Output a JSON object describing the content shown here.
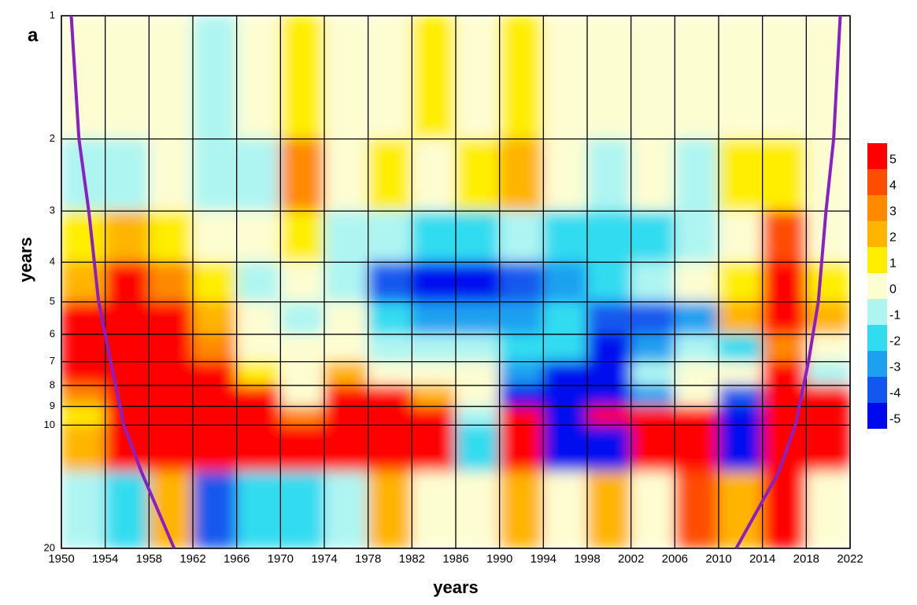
{
  "chart_data": {
    "type": "heatmap",
    "panel_label": "a",
    "x_label": "years",
    "y_label": "years",
    "log_y": true,
    "grid": true,
    "xlim": [
      1950,
      2022
    ],
    "ylim": [
      1,
      20
    ],
    "xticks": [
      1950,
      1954,
      1958,
      1962,
      1966,
      1970,
      1974,
      1978,
      1982,
      1986,
      1990,
      1994,
      1998,
      2002,
      2006,
      2010,
      2014,
      2018,
      2022
    ],
    "yticks": [
      1,
      2,
      3,
      4,
      5,
      6,
      7,
      8,
      9,
      10,
      20
    ],
    "x_bins": [
      1950,
      1954,
      1958,
      1962,
      1966,
      1970,
      1974,
      1978,
      1982,
      1986,
      1990,
      1994,
      1998,
      2002,
      2006,
      2010,
      2014,
      2018,
      2022
    ],
    "y_bins": [
      1,
      2,
      3,
      4,
      5,
      6,
      7,
      8,
      9,
      10,
      13,
      20
    ],
    "z": [
      [
        0,
        0,
        0,
        -1,
        0,
        1,
        0,
        0,
        1,
        0,
        1,
        0,
        0,
        0,
        0,
        0,
        0,
        0
      ],
      [
        -1,
        -1,
        0,
        -1,
        -1,
        3,
        0,
        1,
        0,
        1,
        2,
        0,
        -1,
        0,
        -1,
        1,
        1,
        0
      ],
      [
        1,
        2,
        1,
        0,
        0,
        1,
        -1,
        -1,
        -2,
        -2,
        -1,
        -2,
        -2,
        -2,
        -1,
        0,
        4,
        0
      ],
      [
        2,
        5,
        3,
        1,
        -1,
        0,
        -1,
        -4,
        -5,
        -5,
        -4,
        -3,
        -2,
        -1,
        0,
        1,
        5,
        1
      ],
      [
        5,
        5,
        5,
        2,
        0,
        -1,
        0,
        -2,
        -3,
        -3,
        -3,
        -2,
        -4,
        -4,
        -3,
        2,
        5,
        2
      ],
      [
        5,
        5,
        5,
        3,
        0,
        0,
        0,
        -1,
        -1,
        -1,
        -2,
        -2,
        -5,
        -3,
        -1,
        -2,
        3,
        0
      ],
      [
        5,
        5,
        5,
        5,
        1,
        0,
        2,
        0,
        0,
        0,
        -3,
        -5,
        -5,
        -1,
        0,
        0,
        5,
        -1
      ],
      [
        3,
        5,
        5,
        5,
        5,
        0,
        5,
        5,
        2,
        0,
        -5,
        -5,
        -5,
        -3,
        0,
        -4,
        5,
        5
      ],
      [
        1,
        5,
        5,
        5,
        5,
        3,
        5,
        5,
        5,
        -1,
        5,
        -5,
        5,
        5,
        5,
        -5,
        5,
        5
      ],
      [
        2,
        5,
        5,
        5,
        5,
        5,
        5,
        5,
        5,
        -2,
        5,
        -5,
        -5,
        5,
        5,
        -5,
        5,
        5
      ],
      [
        -1,
        -2,
        2,
        -4,
        -2,
        -2,
        -1,
        2,
        0,
        0,
        2,
        0,
        2,
        0,
        4,
        2,
        5,
        0
      ]
    ],
    "colorbar": {
      "levels": [
        5,
        4,
        3,
        2,
        1,
        0,
        -1,
        -2,
        -3,
        -4,
        -5
      ],
      "colors": [
        "#ff0000",
        "#ff4d00",
        "#ff8a00",
        "#ffb400",
        "#ffee00",
        "#fdfdd2",
        "#aef5f2",
        "#30dcf0",
        "#1ea0f0",
        "#1258ee",
        "#0008ee"
      ]
    },
    "coi": [
      {
        "color": "#8b1fc4",
        "x": [
          1950.9,
          1951.6,
          1952.5,
          1953.4,
          1954.5,
          1955.7,
          1957.3,
          1960.3
        ],
        "y": [
          1,
          2,
          3,
          5,
          7,
          10,
          13,
          20
        ]
      },
      {
        "color": "#8b1fc4",
        "x": [
          2021.1,
          2020.5,
          2019.8,
          2019.1,
          2018.2,
          2017,
          2015.5,
          2011.6
        ],
        "y": [
          1,
          2,
          3,
          5,
          7,
          10,
          13,
          20
        ]
      }
    ]
  }
}
